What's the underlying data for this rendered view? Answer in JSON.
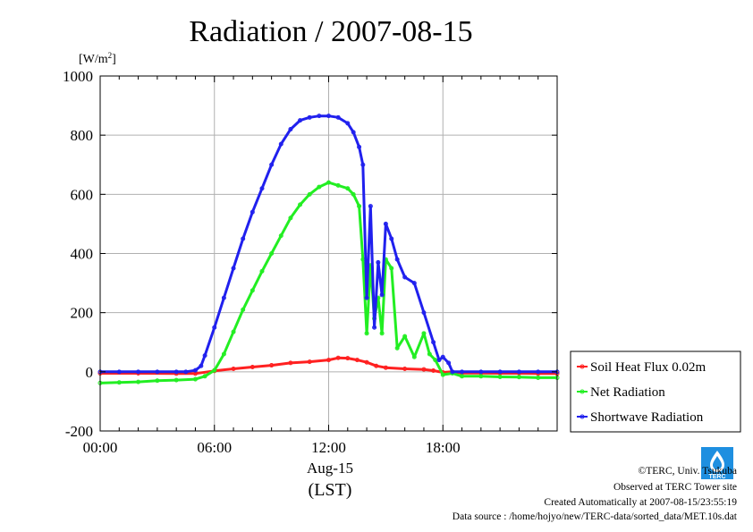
{
  "chart_data": {
    "type": "line",
    "title": "Radiation / 2007-08-15",
    "ylabel": "[W/m²]",
    "ylabel_base": "[W/m",
    "ylabel_sup": "2",
    "ylabel_end": "]",
    "ylim": [
      -200,
      1000
    ],
    "yticks": [
      -200,
      0,
      200,
      400,
      600,
      800,
      1000
    ],
    "xlim": [
      0,
      24
    ],
    "xticks": [
      0,
      6,
      12,
      18
    ],
    "xtick_labels": [
      "00:00",
      "06:00",
      "12:00",
      "18:00"
    ],
    "x_sublabel": "Aug-15",
    "x_unit_label": "(LST)",
    "grid": true,
    "legend_position": "bottom-right outside",
    "series": [
      {
        "name": "Soil Heat Flux 0.02m",
        "color": "#ff2020",
        "x": [
          0,
          2,
          4,
          5,
          6,
          7,
          8,
          9,
          10,
          11,
          12,
          12.5,
          13,
          13.5,
          14,
          14.5,
          15,
          16,
          17,
          17.5,
          18,
          18.5,
          19,
          20,
          21,
          22,
          23,
          24
        ],
        "y": [
          -5,
          -5,
          -6,
          -6,
          3,
          10,
          16,
          22,
          30,
          34,
          40,
          47,
          46,
          40,
          32,
          20,
          14,
          10,
          8,
          4,
          -2,
          0,
          -4,
          -4,
          -5,
          -5,
          -6,
          -6
        ]
      },
      {
        "name": "Net Radiation",
        "color": "#22ee22",
        "x": [
          0,
          1,
          2,
          3,
          4,
          5,
          5.5,
          6,
          6.5,
          7,
          7.5,
          8,
          8.5,
          9,
          9.5,
          10,
          10.5,
          11,
          11.5,
          12,
          12.5,
          13,
          13.3,
          13.6,
          13.8,
          14,
          14.2,
          14.4,
          14.6,
          14.8,
          15,
          15.3,
          15.6,
          16,
          16.5,
          17,
          17.3,
          17.6,
          18,
          18.5,
          19,
          20,
          21,
          22,
          23,
          24
        ],
        "y": [
          -38,
          -36,
          -34,
          -30,
          -28,
          -25,
          -15,
          5,
          60,
          135,
          210,
          275,
          340,
          400,
          460,
          520,
          565,
          600,
          625,
          640,
          630,
          620,
          600,
          560,
          380,
          130,
          360,
          180,
          250,
          130,
          380,
          350,
          80,
          120,
          50,
          130,
          60,
          40,
          -10,
          -5,
          -15,
          -15,
          -17,
          -18,
          -20,
          -20
        ]
      },
      {
        "name": "Shortwave Radiation",
        "color": "#2020ee",
        "x": [
          0,
          1,
          2,
          3,
          4,
          4.5,
          5,
          5.3,
          5.5,
          6,
          6.5,
          7,
          7.5,
          8,
          8.5,
          9,
          9.5,
          10,
          10.5,
          11,
          11.5,
          12,
          12.5,
          13,
          13.3,
          13.6,
          13.8,
          14,
          14.2,
          14.4,
          14.6,
          14.8,
          15,
          15.3,
          15.6,
          16,
          16.5,
          17,
          17.5,
          17.8,
          18,
          18.3,
          18.5,
          19,
          20,
          21,
          22,
          23,
          24
        ],
        "y": [
          0,
          0,
          0,
          0,
          0,
          0,
          5,
          20,
          55,
          150,
          250,
          350,
          450,
          540,
          620,
          700,
          770,
          820,
          850,
          860,
          865,
          865,
          860,
          840,
          810,
          760,
          700,
          250,
          560,
          150,
          370,
          260,
          500,
          450,
          380,
          320,
          300,
          200,
          100,
          40,
          50,
          30,
          0,
          0,
          0,
          0,
          0,
          0,
          0
        ]
      }
    ]
  },
  "credits": {
    "copyright": "©TERC, Univ. Tsukuba",
    "observed": "Observed at TERC Tower site",
    "created": "Created Automatically at 2007-08-15/23:55:19",
    "source": "Data source : /home/hojyo/new/TERC-data/sorted_data/MET.10s.dat"
  },
  "logo": {
    "text": "TERC",
    "color": "#1e8fe0"
  }
}
